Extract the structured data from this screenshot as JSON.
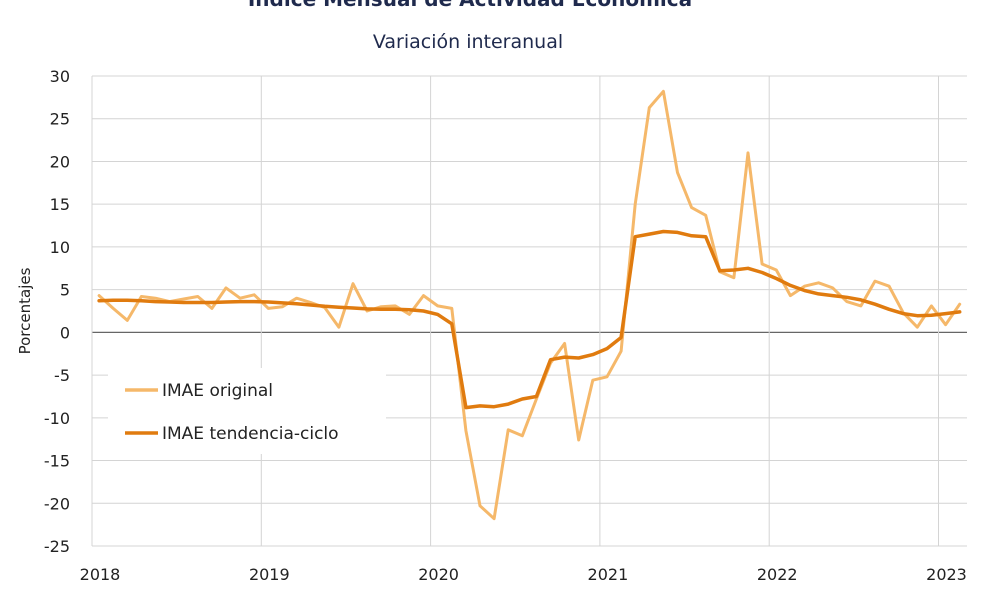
{
  "chart_data": {
    "type": "line",
    "title": "Índice Mensual de Actividad Económica",
    "subtitle": "Variación interanual",
    "xlabel": "",
    "ylabel": "Porcentajes",
    "ylim": [
      -25,
      30
    ],
    "yticks": [
      30,
      25,
      20,
      15,
      10,
      5,
      0,
      -5,
      -10,
      -15,
      -20,
      -25
    ],
    "xticks": [
      "2018",
      "2019",
      "2020",
      "2021",
      "2022",
      "2023"
    ],
    "grid": true,
    "legend_position": "bottom-left",
    "x_start": "2018-01",
    "series": [
      {
        "name": "IMAE original",
        "color": "#f5b86a",
        "values": [
          4.3,
          2.8,
          1.4,
          4.2,
          4.0,
          3.6,
          3.9,
          4.2,
          2.8,
          5.2,
          4.0,
          4.4,
          2.8,
          3.0,
          4.0,
          3.5,
          2.9,
          0.6,
          5.7,
          2.5,
          3.0,
          3.1,
          2.1,
          4.3,
          3.1,
          2.8,
          -11.5,
          -20.3,
          -21.8,
          -11.4,
          -12.1,
          -7.8,
          -3.6,
          -1.3,
          -12.6,
          -5.6,
          -5.2,
          -2.2,
          15.0,
          26.3,
          28.2,
          18.7,
          14.6,
          13.7,
          7.1,
          6.4,
          21.0,
          8.0,
          7.3,
          4.3,
          5.4,
          5.8,
          5.2,
          3.6,
          3.1,
          6.0,
          5.4,
          2.3,
          0.6,
          3.1,
          0.9,
          3.3
        ]
      },
      {
        "name": "IMAE tendencia-ciclo",
        "color": "#e07b0f",
        "values": [
          3.7,
          3.75,
          3.75,
          3.7,
          3.6,
          3.55,
          3.5,
          3.5,
          3.5,
          3.55,
          3.6,
          3.6,
          3.55,
          3.45,
          3.35,
          3.2,
          3.05,
          2.95,
          2.85,
          2.75,
          2.7,
          2.7,
          2.65,
          2.5,
          2.1,
          1.0,
          -8.8,
          -8.6,
          -8.7,
          -8.4,
          -7.8,
          -7.5,
          -3.2,
          -2.9,
          -3.0,
          -2.6,
          -1.9,
          -0.6,
          11.2,
          11.5,
          11.8,
          11.7,
          11.3,
          11.2,
          7.2,
          7.3,
          7.5,
          7.0,
          6.3,
          5.5,
          4.9,
          4.5,
          4.3,
          4.1,
          3.8,
          3.3,
          2.7,
          2.2,
          1.95,
          2.0,
          2.2,
          2.4
        ]
      }
    ]
  }
}
